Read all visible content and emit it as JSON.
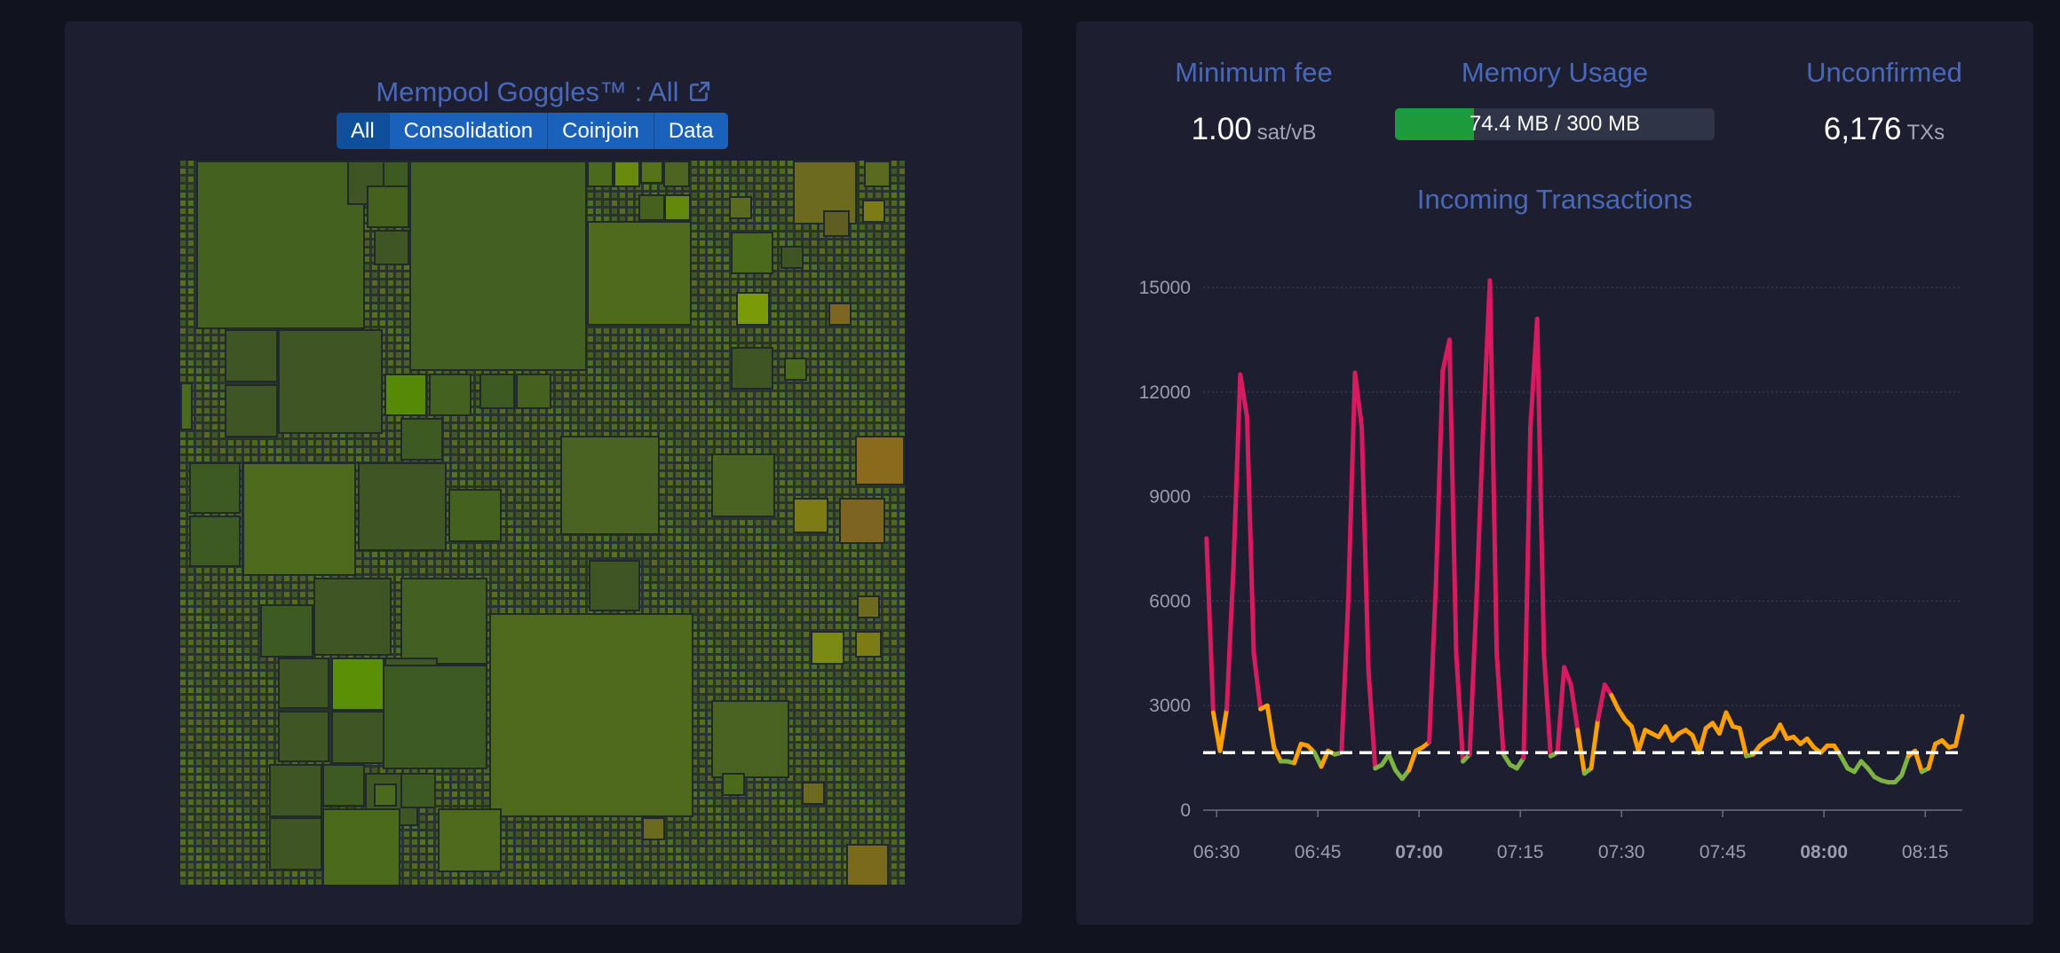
{
  "goggles": {
    "title": "Mempool Goggles™ : All",
    "external_icon": "external-link-icon",
    "filters": [
      {
        "label": "All",
        "active": true
      },
      {
        "label": "Consolidation",
        "active": false
      },
      {
        "label": "Coinjoin",
        "active": false
      },
      {
        "label": "Data",
        "active": false
      }
    ]
  },
  "stats": {
    "min_fee": {
      "label": "Minimum fee",
      "value": "1.00",
      "unit": "sat/vB"
    },
    "memory": {
      "label": "Memory Usage",
      "text": "74.4 MB / 300 MB",
      "used_fraction": 0.248
    },
    "unconfirmed": {
      "label": "Unconfirmed",
      "value": "6,176",
      "unit": "TXs"
    }
  },
  "colors": {
    "accent": "#4a68b9",
    "high": "#d81b60",
    "mid": "#ffa000",
    "low": "#7cb342",
    "threshold": "#ffffff"
  },
  "chart_data": {
    "type": "line",
    "title": "Incoming Transactions",
    "ylim": [
      0,
      15000
    ],
    "yticks": [
      "0",
      "3000",
      "6000",
      "9000",
      "12000",
      "15000"
    ],
    "xticks": [
      {
        "label": "06:30",
        "bold": false,
        "t": 0
      },
      {
        "label": "06:45",
        "bold": false,
        "t": 15
      },
      {
        "label": "07:00",
        "bold": true,
        "t": 30
      },
      {
        "label": "07:15",
        "bold": false,
        "t": 45
      },
      {
        "label": "07:30",
        "bold": false,
        "t": 60
      },
      {
        "label": "07:45",
        "bold": false,
        "t": 75
      },
      {
        "label": "08:00",
        "bold": true,
        "t": 90
      },
      {
        "label": "08:15",
        "bold": false,
        "t": 105
      }
    ],
    "threshold": 1650,
    "series": [
      {
        "values": [
          [
            -1.5,
            7800
          ],
          [
            -0.5,
            2800
          ],
          [
            0.5,
            1700
          ],
          [
            1.5,
            2900
          ],
          [
            2.5,
            7000
          ],
          [
            3.5,
            12500
          ],
          [
            4.5,
            11300
          ],
          [
            5.5,
            4500
          ],
          [
            6.5,
            2900
          ],
          [
            7.5,
            3000
          ],
          [
            8.5,
            1800
          ],
          [
            9.5,
            1400
          ],
          [
            10.5,
            1400
          ],
          [
            11.5,
            1350
          ],
          [
            12.5,
            1900
          ],
          [
            13.5,
            1850
          ],
          [
            14.5,
            1650
          ],
          [
            15.5,
            1250
          ],
          [
            16.5,
            1700
          ],
          [
            17.5,
            1600
          ],
          [
            18.5,
            1650
          ],
          [
            19.5,
            6000
          ],
          [
            20.5,
            12550
          ],
          [
            21.5,
            11000
          ],
          [
            22.5,
            4000
          ],
          [
            23.5,
            1200
          ],
          [
            24.5,
            1300
          ],
          [
            25.5,
            1600
          ],
          [
            26.5,
            1150
          ],
          [
            27.5,
            900
          ],
          [
            28.5,
            1150
          ],
          [
            29.5,
            1700
          ],
          [
            30.5,
            1800
          ],
          [
            31.5,
            1950
          ],
          [
            32.5,
            6500
          ],
          [
            33.5,
            12600
          ],
          [
            34.5,
            13500
          ],
          [
            35.5,
            4500
          ],
          [
            36.5,
            1400
          ],
          [
            37.5,
            1600
          ],
          [
            38.5,
            6000
          ],
          [
            39.5,
            11000
          ],
          [
            40.5,
            15200
          ],
          [
            41.5,
            4500
          ],
          [
            42.5,
            1600
          ],
          [
            43.5,
            1300
          ],
          [
            44.5,
            1200
          ],
          [
            45.5,
            1500
          ],
          [
            46.5,
            11000
          ],
          [
            47.5,
            14100
          ],
          [
            48.5,
            4500
          ],
          [
            49.5,
            1550
          ],
          [
            50.5,
            1650
          ],
          [
            51.5,
            4100
          ],
          [
            52.5,
            3600
          ],
          [
            53.5,
            2300
          ],
          [
            54.5,
            1050
          ],
          [
            55.5,
            1200
          ],
          [
            56.5,
            2600
          ],
          [
            57.5,
            3600
          ],
          [
            58.5,
            3300
          ],
          [
            59.5,
            2900
          ],
          [
            60.5,
            2600
          ],
          [
            61.5,
            2400
          ],
          [
            62.5,
            1700
          ],
          [
            63.5,
            2300
          ],
          [
            64.5,
            2200
          ],
          [
            65.5,
            2100
          ],
          [
            66.5,
            2400
          ],
          [
            67.5,
            2000
          ],
          [
            68.5,
            2200
          ],
          [
            69.5,
            2300
          ],
          [
            70.5,
            2150
          ],
          [
            71.5,
            1650
          ],
          [
            72.5,
            2350
          ],
          [
            73.5,
            2500
          ],
          [
            74.5,
            2200
          ],
          [
            75.5,
            2800
          ],
          [
            76.5,
            2400
          ],
          [
            77.5,
            2350
          ],
          [
            78.5,
            1550
          ],
          [
            79.5,
            1600
          ],
          [
            80.5,
            1850
          ],
          [
            81.5,
            2000
          ],
          [
            82.5,
            2100
          ],
          [
            83.5,
            2450
          ],
          [
            84.5,
            2050
          ],
          [
            85.5,
            2100
          ],
          [
            86.5,
            1900
          ],
          [
            87.5,
            2050
          ],
          [
            88.5,
            1800
          ],
          [
            89.5,
            1650
          ],
          [
            90.5,
            1850
          ],
          [
            91.5,
            1850
          ],
          [
            92.5,
            1550
          ],
          [
            93.5,
            1200
          ],
          [
            94.5,
            1100
          ],
          [
            95.5,
            1400
          ],
          [
            96.5,
            1200
          ],
          [
            97.5,
            950
          ],
          [
            98.5,
            850
          ],
          [
            99.5,
            800
          ],
          [
            100.5,
            800
          ],
          [
            101.5,
            1000
          ],
          [
            102.5,
            1550
          ],
          [
            103.5,
            1700
          ],
          [
            104.5,
            1100
          ],
          [
            105.5,
            1200
          ],
          [
            106.5,
            1900
          ],
          [
            107.5,
            2000
          ],
          [
            108.5,
            1800
          ],
          [
            109.5,
            1850
          ],
          [
            110.5,
            2700
          ]
        ]
      }
    ]
  }
}
